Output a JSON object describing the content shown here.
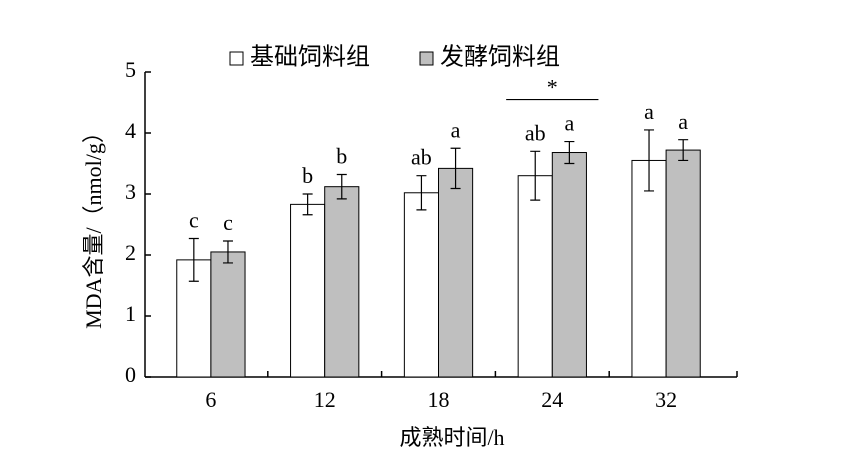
{
  "chart_data": {
    "type": "bar",
    "categories": [
      "6",
      "12",
      "18",
      "24",
      "32"
    ],
    "series": [
      {
        "name": "基础饲料组",
        "color": "#ffffff",
        "values": [
          1.92,
          2.83,
          3.02,
          3.3,
          3.55
        ],
        "errors": [
          0.35,
          0.17,
          0.28,
          0.4,
          0.5
        ],
        "labels": [
          "c",
          "b",
          "ab",
          "ab",
          "a"
        ]
      },
      {
        "name": "发酵饲料组",
        "color": "#bfbfbf",
        "values": [
          2.05,
          3.12,
          3.42,
          3.68,
          3.72
        ],
        "errors": [
          0.18,
          0.2,
          0.33,
          0.18,
          0.17
        ],
        "labels": [
          "c",
          "b",
          "a",
          "a",
          "a"
        ]
      }
    ],
    "annotations": [
      {
        "text": "*",
        "category": "24"
      }
    ],
    "xlabel": "成熟时间/h",
    "ylabel": "MDA含量/（nmol/g）",
    "ylim": [
      0,
      5
    ],
    "yticks": [
      0,
      1,
      2,
      3,
      4,
      5
    ]
  }
}
